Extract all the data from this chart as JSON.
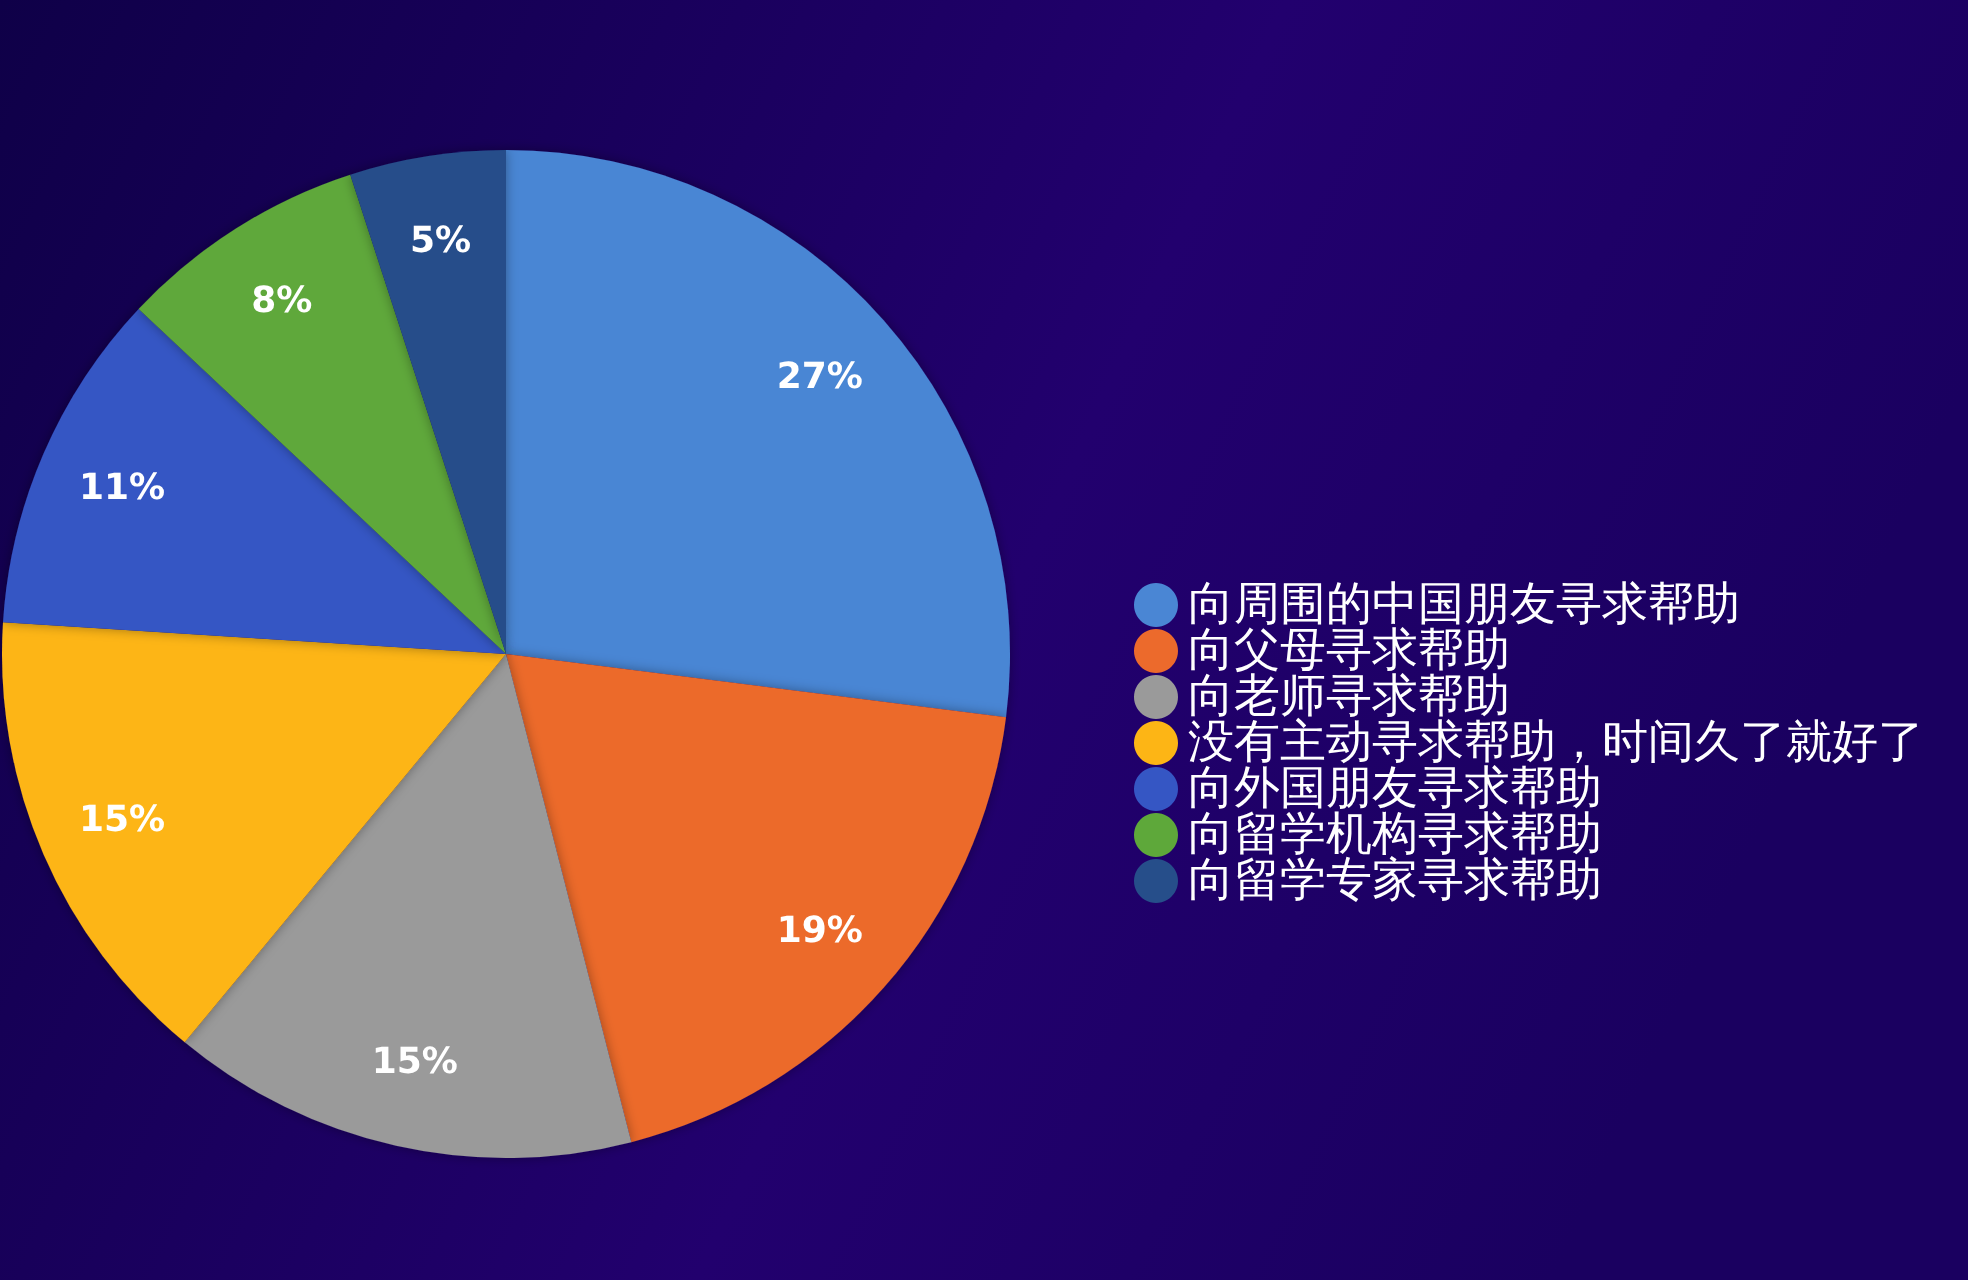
{
  "chart_data": {
    "type": "pie",
    "categories": [
      "向周围的中国朋友寻求帮助",
      "向父母寻求帮助",
      "向老师寻求帮助",
      "没有主动寻求帮助，时间久了就好了",
      "向外国朋友寻求帮助",
      "向留学机构寻求帮助",
      "向留学专家寻求帮助"
    ],
    "values": [
      27,
      19,
      15,
      15,
      11,
      8,
      5
    ],
    "value_labels": [
      "27%",
      "19%",
      "15%",
      "15%",
      "11%",
      "8%",
      "5%"
    ],
    "colors": [
      "#4a86d4",
      "#ec6a2c",
      "#9a9a9a",
      "#fdb515",
      "#3556c4",
      "#5ea83a",
      "#264e8a"
    ],
    "legend": "right"
  }
}
